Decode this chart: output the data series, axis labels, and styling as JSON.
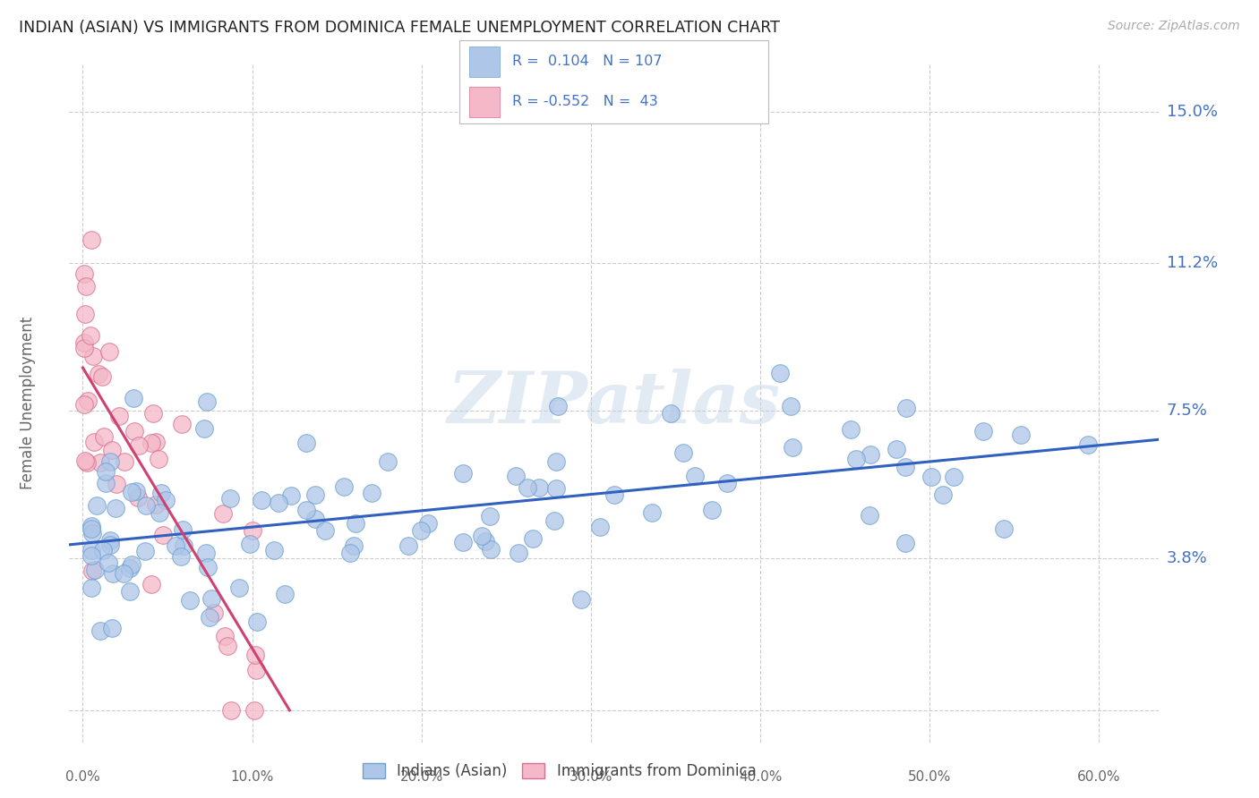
{
  "title": "INDIAN (ASIAN) VS IMMIGRANTS FROM DOMINICA FEMALE UNEMPLOYMENT CORRELATION CHART",
  "source": "Source: ZipAtlas.com",
  "ylabel": "Female Unemployment",
  "x_ticks": [
    "0.0%",
    "10.0%",
    "20.0%",
    "30.0%",
    "40.0%",
    "50.0%",
    "60.0%"
  ],
  "x_tick_vals": [
    0.0,
    0.1,
    0.2,
    0.3,
    0.4,
    0.5,
    0.6
  ],
  "y_tick_vals": [
    0.0,
    0.038,
    0.075,
    0.112,
    0.15
  ],
  "y_tick_labels": [
    "",
    "3.8%",
    "7.5%",
    "11.2%",
    "15.0%"
  ],
  "xlim": [
    -0.008,
    0.635
  ],
  "ylim": [
    -0.008,
    0.162
  ],
  "watermark": "ZIPatlas",
  "background_color": "#ffffff",
  "grid_color": "#cccccc",
  "blue_dot_color": "#aec6e8",
  "blue_dot_edge": "#6fa0d0",
  "pink_dot_color": "#f4b8c8",
  "pink_dot_edge": "#d87090",
  "blue_line_color": "#3060c0",
  "pink_line_color": "#d04070",
  "axis_label_color": "#4472c4",
  "tick_color": "#666666",
  "blue_R": 0.104,
  "blue_N": 107,
  "pink_R": -0.552,
  "pink_N": 43,
  "blue_trend_x0": -0.008,
  "blue_trend_x1": 0.635,
  "blue_trend_y0": 0.049,
  "blue_trend_y1": 0.058,
  "pink_trend_x0": 0.0,
  "pink_trend_x1": 0.155,
  "pink_trend_y0": 0.083,
  "pink_trend_y1": 0.0
}
